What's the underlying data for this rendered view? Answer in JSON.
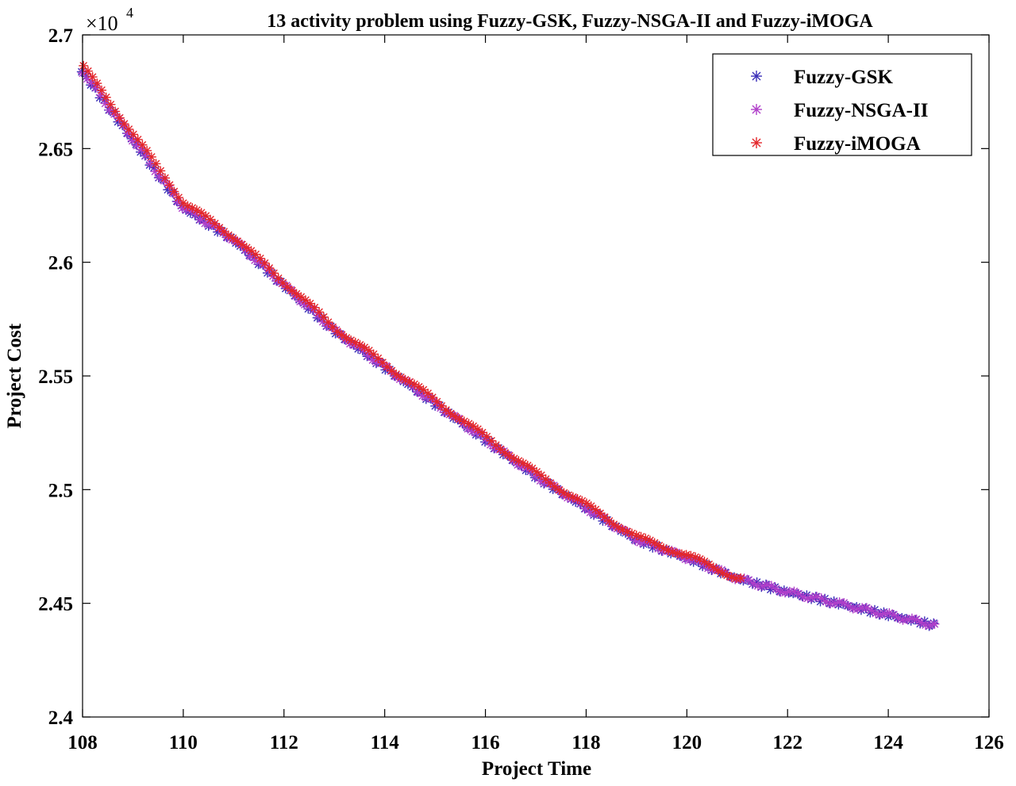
{
  "chart_data": {
    "type": "scatter",
    "title": "13 activity problem using Fuzzy-GSK, Fuzzy-NSGA-II and Fuzzy-iMOGA",
    "xlabel": "Project Time",
    "ylabel": "Project Cost",
    "y_multiplier": "×10",
    "y_multiplier_exp": "4",
    "xlim": [
      108,
      126
    ],
    "ylim": [
      2.4,
      2.7
    ],
    "x_ticks": [
      108,
      110,
      112,
      114,
      116,
      118,
      120,
      122,
      124,
      126
    ],
    "x_tick_labels": [
      "108",
      "110",
      "112",
      "114",
      "116",
      "118",
      "120",
      "122",
      "124",
      "126"
    ],
    "y_ticks": [
      2.4,
      2.45,
      2.5,
      2.55,
      2.6,
      2.65,
      2.7
    ],
    "y_tick_labels": [
      "2.4",
      "2.45",
      "2.5",
      "2.55",
      "2.6",
      "2.65",
      "2.7"
    ],
    "grid": false,
    "legend_position": "top-right",
    "marker": "*",
    "series": [
      {
        "name": "Fuzzy-GSK",
        "color": "#3b2fb8",
        "x_range": [
          108,
          125
        ],
        "front": [
          [
            108,
            2.684
          ],
          [
            109,
            2.654
          ],
          [
            110,
            2.624
          ],
          [
            111,
            2.61
          ],
          [
            112,
            2.59
          ],
          [
            113,
            2.57
          ],
          [
            114,
            2.554
          ],
          [
            115,
            2.538
          ],
          [
            116,
            2.522
          ],
          [
            117,
            2.506
          ],
          [
            118,
            2.492
          ],
          [
            119,
            2.478
          ],
          [
            120,
            2.47
          ],
          [
            121,
            2.461
          ],
          [
            122,
            2.455
          ],
          [
            123,
            2.45
          ],
          [
            124,
            2.445
          ],
          [
            125,
            2.44
          ]
        ]
      },
      {
        "name": "Fuzzy-NSGA-II",
        "color": "#b03fc9",
        "x_range": [
          108,
          125
        ],
        "front": [
          [
            108,
            2.684
          ],
          [
            109,
            2.654
          ],
          [
            110,
            2.624
          ],
          [
            111,
            2.61
          ],
          [
            112,
            2.59
          ],
          [
            113,
            2.57
          ],
          [
            114,
            2.554
          ],
          [
            115,
            2.538
          ],
          [
            116,
            2.522
          ],
          [
            117,
            2.506
          ],
          [
            118,
            2.492
          ],
          [
            119,
            2.478
          ],
          [
            120,
            2.47
          ],
          [
            121,
            2.461
          ],
          [
            122,
            2.455
          ],
          [
            123,
            2.45
          ],
          [
            124,
            2.445
          ],
          [
            125,
            2.44
          ]
        ]
      },
      {
        "name": "Fuzzy-iMOGA",
        "color": "#e3262b",
        "x_range": [
          108,
          121.1
        ],
        "front": [
          [
            108,
            2.686
          ],
          [
            109,
            2.656
          ],
          [
            110,
            2.626
          ],
          [
            111,
            2.611
          ],
          [
            112,
            2.591
          ],
          [
            113,
            2.571
          ],
          [
            114,
            2.555
          ],
          [
            115,
            2.539
          ],
          [
            116,
            2.523
          ],
          [
            117,
            2.507
          ],
          [
            118,
            2.493
          ],
          [
            119,
            2.479
          ],
          [
            120,
            2.471
          ],
          [
            121,
            2.461
          ]
        ]
      }
    ]
  }
}
